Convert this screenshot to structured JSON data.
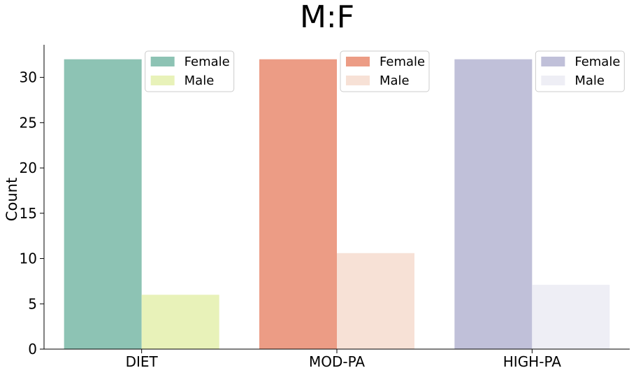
{
  "chart_data": {
    "type": "bar",
    "title": "M:F",
    "xlabel": "",
    "ylabel": "Count",
    "categories": [
      "DIET",
      "MOD-PA",
      "HIGH-PA"
    ],
    "ylim": [
      0,
      33.6
    ],
    "yticks": [
      0,
      5,
      10,
      15,
      20,
      25,
      30
    ],
    "grid": false,
    "legend_placement": "upper-right of each group",
    "series": [
      {
        "name": "Female",
        "values": [
          32,
          32,
          32
        ],
        "colors": [
          "#8dc3b4",
          "#ec9c85",
          "#c0c0d9"
        ]
      },
      {
        "name": "Male",
        "values": [
          6,
          10.6,
          7.1
        ],
        "colors": [
          "#e8f2b9",
          "#f7e1d6",
          "#eeeef5"
        ]
      }
    ]
  }
}
